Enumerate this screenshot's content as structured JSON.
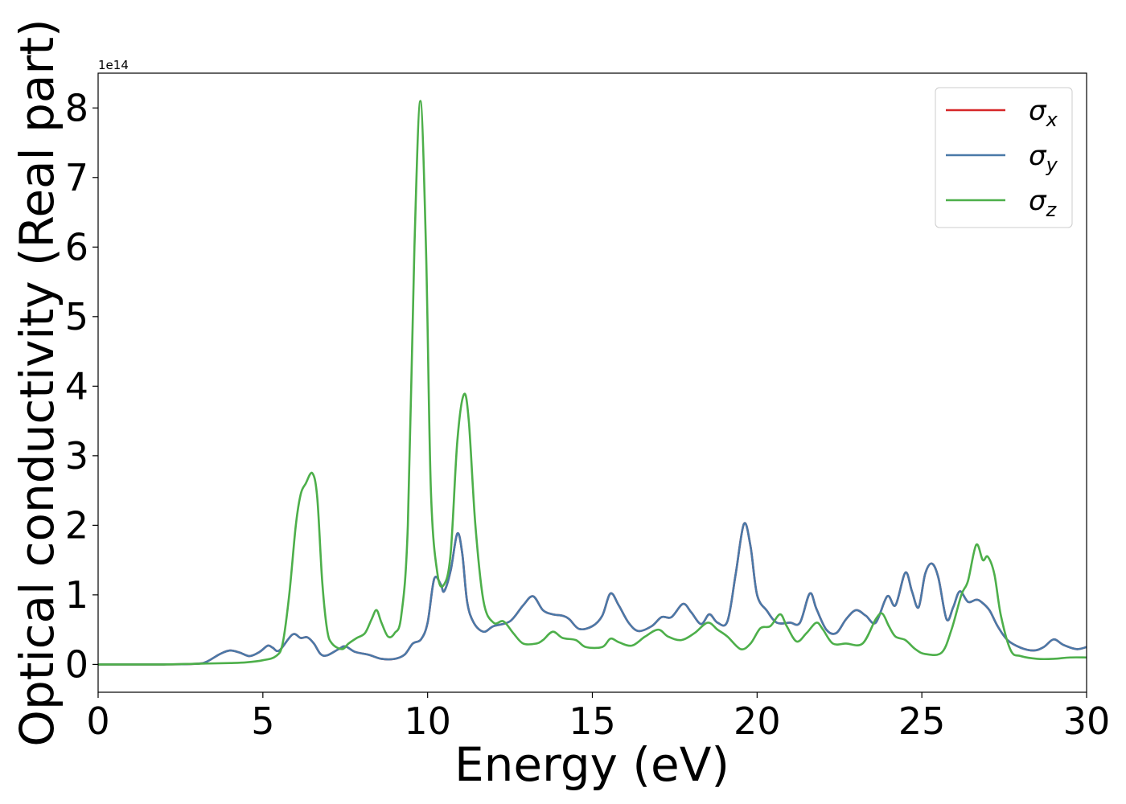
{
  "chart_data": {
    "type": "line",
    "xlabel": "Energy (eV)",
    "ylabel": "Optical conductivity (Real part)",
    "scale_label": "1e14",
    "xlim": [
      0,
      30
    ],
    "ylim": [
      -0.4,
      8.5
    ],
    "xticks": [
      0,
      5,
      10,
      15,
      20,
      25,
      30
    ],
    "yticks": [
      0,
      1,
      2,
      3,
      4,
      5,
      6,
      7,
      8
    ],
    "grid": false,
    "legend_position": "top-right",
    "series": [
      {
        "name": "x",
        "color": "#d62728",
        "points": [
          [
            0,
            0
          ],
          [
            1,
            0
          ],
          [
            2,
            0
          ],
          [
            3,
            0.01
          ],
          [
            3.3,
            0.04
          ],
          [
            3.7,
            0.15
          ],
          [
            4,
            0.2
          ],
          [
            4.3,
            0.17
          ],
          [
            4.6,
            0.12
          ],
          [
            4.9,
            0.18
          ],
          [
            5.15,
            0.27
          ],
          [
            5.3,
            0.24
          ],
          [
            5.5,
            0.2
          ],
          [
            5.9,
            0.43
          ],
          [
            6.15,
            0.38
          ],
          [
            6.35,
            0.39
          ],
          [
            6.55,
            0.3
          ],
          [
            6.75,
            0.15
          ],
          [
            6.95,
            0.13
          ],
          [
            7.3,
            0.22
          ],
          [
            7.5,
            0.26
          ],
          [
            7.8,
            0.18
          ],
          [
            8.2,
            0.14
          ],
          [
            8.6,
            0.08
          ],
          [
            9.0,
            0.08
          ],
          [
            9.3,
            0.14
          ],
          [
            9.55,
            0.3
          ],
          [
            9.8,
            0.36
          ],
          [
            10.0,
            0.6
          ],
          [
            10.2,
            1.23
          ],
          [
            10.4,
            1.15
          ],
          [
            10.5,
            1.05
          ],
          [
            10.7,
            1.35
          ],
          [
            10.9,
            1.88
          ],
          [
            11.05,
            1.6
          ],
          [
            11.2,
            0.9
          ],
          [
            11.4,
            0.6
          ],
          [
            11.7,
            0.47
          ],
          [
            12.0,
            0.55
          ],
          [
            12.5,
            0.62
          ],
          [
            12.9,
            0.85
          ],
          [
            13.2,
            0.98
          ],
          [
            13.5,
            0.78
          ],
          [
            13.8,
            0.72
          ],
          [
            14.1,
            0.7
          ],
          [
            14.3,
            0.65
          ],
          [
            14.6,
            0.51
          ],
          [
            15.0,
            0.55
          ],
          [
            15.3,
            0.7
          ],
          [
            15.55,
            1.02
          ],
          [
            15.8,
            0.85
          ],
          [
            16.1,
            0.6
          ],
          [
            16.4,
            0.48
          ],
          [
            16.8,
            0.55
          ],
          [
            17.1,
            0.68
          ],
          [
            17.4,
            0.68
          ],
          [
            17.75,
            0.87
          ],
          [
            18.0,
            0.75
          ],
          [
            18.3,
            0.58
          ],
          [
            18.55,
            0.72
          ],
          [
            18.8,
            0.6
          ],
          [
            19.1,
            0.62
          ],
          [
            19.35,
            1.3
          ],
          [
            19.6,
            2.02
          ],
          [
            19.8,
            1.7
          ],
          [
            20.0,
            1.0
          ],
          [
            20.3,
            0.77
          ],
          [
            20.6,
            0.6
          ],
          [
            21.0,
            0.6
          ],
          [
            21.3,
            0.6
          ],
          [
            21.6,
            1.02
          ],
          [
            21.8,
            0.8
          ],
          [
            22.1,
            0.5
          ],
          [
            22.4,
            0.45
          ],
          [
            22.7,
            0.65
          ],
          [
            23.0,
            0.78
          ],
          [
            23.3,
            0.7
          ],
          [
            23.6,
            0.6
          ],
          [
            23.95,
            0.98
          ],
          [
            24.2,
            0.85
          ],
          [
            24.5,
            1.32
          ],
          [
            24.7,
            1.05
          ],
          [
            24.9,
            0.82
          ],
          [
            25.1,
            1.3
          ],
          [
            25.3,
            1.45
          ],
          [
            25.5,
            1.25
          ],
          [
            25.75,
            0.65
          ],
          [
            25.95,
            0.82
          ],
          [
            26.15,
            1.05
          ],
          [
            26.4,
            0.9
          ],
          [
            26.65,
            0.93
          ],
          [
            26.8,
            0.9
          ],
          [
            27.05,
            0.78
          ],
          [
            27.3,
            0.55
          ],
          [
            27.6,
            0.35
          ],
          [
            28.0,
            0.24
          ],
          [
            28.4,
            0.2
          ],
          [
            28.7,
            0.25
          ],
          [
            29.0,
            0.36
          ],
          [
            29.3,
            0.28
          ],
          [
            29.7,
            0.22
          ],
          [
            30,
            0.25
          ]
        ]
      },
      {
        "name": "y",
        "color": "#4a79a8",
        "points": [
          [
            0,
            0
          ],
          [
            1,
            0
          ],
          [
            2,
            0
          ],
          [
            3,
            0.01
          ],
          [
            3.3,
            0.04
          ],
          [
            3.7,
            0.15
          ],
          [
            4,
            0.2
          ],
          [
            4.3,
            0.17
          ],
          [
            4.6,
            0.12
          ],
          [
            4.9,
            0.18
          ],
          [
            5.15,
            0.27
          ],
          [
            5.3,
            0.24
          ],
          [
            5.5,
            0.2
          ],
          [
            5.9,
            0.43
          ],
          [
            6.15,
            0.38
          ],
          [
            6.35,
            0.39
          ],
          [
            6.55,
            0.3
          ],
          [
            6.75,
            0.15
          ],
          [
            6.95,
            0.13
          ],
          [
            7.3,
            0.22
          ],
          [
            7.5,
            0.26
          ],
          [
            7.8,
            0.18
          ],
          [
            8.2,
            0.14
          ],
          [
            8.6,
            0.08
          ],
          [
            9.0,
            0.08
          ],
          [
            9.3,
            0.14
          ],
          [
            9.55,
            0.3
          ],
          [
            9.8,
            0.36
          ],
          [
            10.0,
            0.6
          ],
          [
            10.2,
            1.23
          ],
          [
            10.4,
            1.15
          ],
          [
            10.5,
            1.05
          ],
          [
            10.7,
            1.35
          ],
          [
            10.9,
            1.88
          ],
          [
            11.05,
            1.6
          ],
          [
            11.2,
            0.9
          ],
          [
            11.4,
            0.6
          ],
          [
            11.7,
            0.47
          ],
          [
            12.0,
            0.55
          ],
          [
            12.5,
            0.62
          ],
          [
            12.9,
            0.85
          ],
          [
            13.2,
            0.98
          ],
          [
            13.5,
            0.78
          ],
          [
            13.8,
            0.72
          ],
          [
            14.1,
            0.7
          ],
          [
            14.3,
            0.65
          ],
          [
            14.6,
            0.51
          ],
          [
            15.0,
            0.55
          ],
          [
            15.3,
            0.7
          ],
          [
            15.55,
            1.02
          ],
          [
            15.8,
            0.85
          ],
          [
            16.1,
            0.6
          ],
          [
            16.4,
            0.48
          ],
          [
            16.8,
            0.55
          ],
          [
            17.1,
            0.68
          ],
          [
            17.4,
            0.68
          ],
          [
            17.75,
            0.87
          ],
          [
            18.0,
            0.75
          ],
          [
            18.3,
            0.58
          ],
          [
            18.55,
            0.72
          ],
          [
            18.8,
            0.6
          ],
          [
            19.1,
            0.62
          ],
          [
            19.35,
            1.3
          ],
          [
            19.6,
            2.02
          ],
          [
            19.8,
            1.7
          ],
          [
            20.0,
            1.0
          ],
          [
            20.3,
            0.77
          ],
          [
            20.6,
            0.6
          ],
          [
            21.0,
            0.6
          ],
          [
            21.3,
            0.6
          ],
          [
            21.6,
            1.02
          ],
          [
            21.8,
            0.8
          ],
          [
            22.1,
            0.5
          ],
          [
            22.4,
            0.45
          ],
          [
            22.7,
            0.65
          ],
          [
            23.0,
            0.78
          ],
          [
            23.3,
            0.7
          ],
          [
            23.6,
            0.6
          ],
          [
            23.95,
            0.98
          ],
          [
            24.2,
            0.85
          ],
          [
            24.5,
            1.32
          ],
          [
            24.7,
            1.05
          ],
          [
            24.9,
            0.82
          ],
          [
            25.1,
            1.3
          ],
          [
            25.3,
            1.45
          ],
          [
            25.5,
            1.25
          ],
          [
            25.75,
            0.65
          ],
          [
            25.95,
            0.82
          ],
          [
            26.15,
            1.05
          ],
          [
            26.4,
            0.9
          ],
          [
            26.65,
            0.93
          ],
          [
            26.8,
            0.9
          ],
          [
            27.05,
            0.78
          ],
          [
            27.3,
            0.55
          ],
          [
            27.6,
            0.35
          ],
          [
            28.0,
            0.24
          ],
          [
            28.4,
            0.2
          ],
          [
            28.7,
            0.25
          ],
          [
            29.0,
            0.36
          ],
          [
            29.3,
            0.28
          ],
          [
            29.7,
            0.22
          ],
          [
            30,
            0.25
          ]
        ]
      },
      {
        "name": "z",
        "color": "#4daf4a",
        "points": [
          [
            0,
            0
          ],
          [
            2,
            0
          ],
          [
            3,
            0.01
          ],
          [
            4,
            0.02
          ],
          [
            4.5,
            0.03
          ],
          [
            5,
            0.06
          ],
          [
            5.4,
            0.12
          ],
          [
            5.6,
            0.3
          ],
          [
            5.8,
            1.0
          ],
          [
            6.0,
            2.0
          ],
          [
            6.15,
            2.45
          ],
          [
            6.3,
            2.6
          ],
          [
            6.5,
            2.75
          ],
          [
            6.65,
            2.4
          ],
          [
            6.8,
            1.2
          ],
          [
            6.95,
            0.5
          ],
          [
            7.1,
            0.3
          ],
          [
            7.4,
            0.22
          ],
          [
            7.6,
            0.3
          ],
          [
            7.85,
            0.38
          ],
          [
            8.1,
            0.45
          ],
          [
            8.3,
            0.65
          ],
          [
            8.45,
            0.78
          ],
          [
            8.6,
            0.6
          ],
          [
            8.8,
            0.4
          ],
          [
            9.0,
            0.45
          ],
          [
            9.2,
            0.7
          ],
          [
            9.4,
            2.0
          ],
          [
            9.6,
            6.0
          ],
          [
            9.78,
            8.1
          ],
          [
            9.95,
            6.0
          ],
          [
            10.1,
            2.5
          ],
          [
            10.3,
            1.3
          ],
          [
            10.5,
            1.15
          ],
          [
            10.7,
            1.6
          ],
          [
            10.9,
            3.2
          ],
          [
            11.1,
            3.88
          ],
          [
            11.25,
            3.5
          ],
          [
            11.45,
            2.0
          ],
          [
            11.7,
            0.9
          ],
          [
            12.0,
            0.6
          ],
          [
            12.3,
            0.62
          ],
          [
            12.6,
            0.45
          ],
          [
            12.9,
            0.3
          ],
          [
            13.3,
            0.3
          ],
          [
            13.5,
            0.35
          ],
          [
            13.8,
            0.47
          ],
          [
            14.1,
            0.38
          ],
          [
            14.5,
            0.35
          ],
          [
            14.8,
            0.25
          ],
          [
            15.3,
            0.25
          ],
          [
            15.55,
            0.37
          ],
          [
            15.8,
            0.32
          ],
          [
            16.2,
            0.27
          ],
          [
            16.6,
            0.4
          ],
          [
            17.0,
            0.5
          ],
          [
            17.3,
            0.4
          ],
          [
            17.7,
            0.35
          ],
          [
            18.1,
            0.45
          ],
          [
            18.5,
            0.6
          ],
          [
            18.8,
            0.5
          ],
          [
            19.1,
            0.4
          ],
          [
            19.5,
            0.22
          ],
          [
            19.8,
            0.3
          ],
          [
            20.1,
            0.52
          ],
          [
            20.4,
            0.55
          ],
          [
            20.7,
            0.72
          ],
          [
            20.9,
            0.55
          ],
          [
            21.2,
            0.33
          ],
          [
            21.5,
            0.45
          ],
          [
            21.8,
            0.6
          ],
          [
            22.0,
            0.5
          ],
          [
            22.3,
            0.3
          ],
          [
            22.7,
            0.3
          ],
          [
            23.2,
            0.3
          ],
          [
            23.6,
            0.65
          ],
          [
            23.8,
            0.73
          ],
          [
            24.0,
            0.55
          ],
          [
            24.2,
            0.4
          ],
          [
            24.5,
            0.35
          ],
          [
            24.8,
            0.22
          ],
          [
            25.1,
            0.15
          ],
          [
            25.6,
            0.17
          ],
          [
            25.9,
            0.5
          ],
          [
            26.2,
            1.0
          ],
          [
            26.4,
            1.2
          ],
          [
            26.65,
            1.72
          ],
          [
            26.85,
            1.5
          ],
          [
            27.0,
            1.55
          ],
          [
            27.2,
            1.3
          ],
          [
            27.4,
            0.7
          ],
          [
            27.7,
            0.2
          ],
          [
            28.0,
            0.12
          ],
          [
            28.5,
            0.08
          ],
          [
            29.0,
            0.08
          ],
          [
            29.5,
            0.1
          ],
          [
            30,
            0.1
          ]
        ]
      }
    ]
  }
}
